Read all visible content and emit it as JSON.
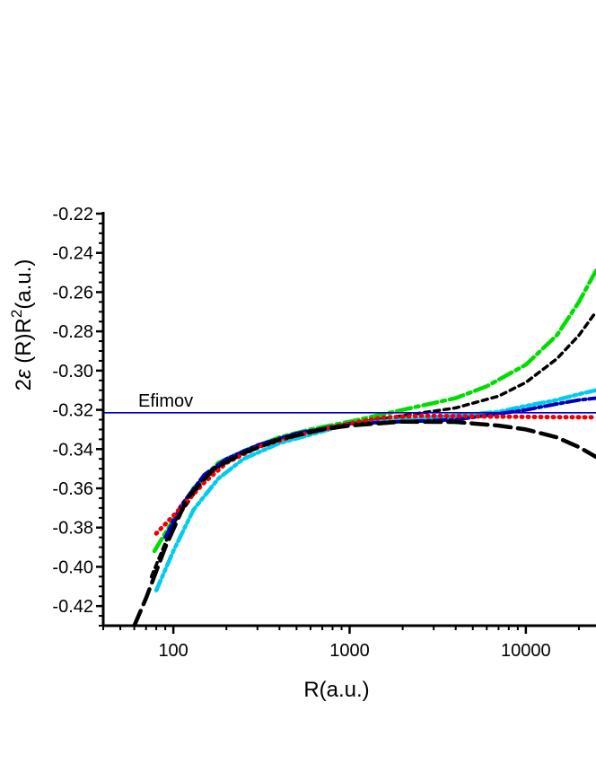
{
  "chart_data": {
    "type": "line",
    "title": "",
    "xlabel": "R(a.u.)",
    "ylabel_parts": {
      "pre": "2",
      "eps": "ε",
      "mid": " (R)R",
      "sup": "2",
      "post": "(a.u.)"
    },
    "xscale": "log",
    "xlim": [
      40,
      25000
    ],
    "ylim": [
      -0.43,
      -0.22
    ],
    "x_ticks": [
      100,
      1000,
      10000
    ],
    "x_tick_labels": [
      "100",
      "1000",
      "10000"
    ],
    "y_ticks": [
      -0.22,
      -0.24,
      -0.26,
      -0.28,
      -0.3,
      -0.32,
      -0.34,
      -0.36,
      -0.38,
      -0.4,
      -0.42
    ],
    "y_tick_labels": [
      "-0.22",
      "-0.24",
      "-0.26",
      "-0.28",
      "-0.30",
      "-0.32",
      "-0.34",
      "-0.36",
      "-0.38",
      "-0.40",
      "-0.42"
    ],
    "grid": false,
    "legend": "none",
    "reference_line": {
      "label": "Efimov",
      "y": -0.3215,
      "color": "#0000cc"
    },
    "series": [
      {
        "color": "#00dd00",
        "dash": "16,5,4,5",
        "width": 4.5,
        "points": [
          [
            78,
            -0.392
          ],
          [
            100,
            -0.376
          ],
          [
            130,
            -0.36
          ],
          [
            180,
            -0.347
          ],
          [
            250,
            -0.341
          ],
          [
            400,
            -0.334
          ],
          [
            600,
            -0.33
          ],
          [
            1000,
            -0.326
          ],
          [
            2000,
            -0.32
          ],
          [
            4000,
            -0.314
          ],
          [
            6000,
            -0.308
          ],
          [
            10000,
            -0.297
          ],
          [
            15000,
            -0.282
          ],
          [
            20000,
            -0.265
          ],
          [
            25000,
            -0.249
          ]
        ]
      },
      {
        "color": "#000000",
        "dash": "6,5",
        "width": 3.5,
        "points": [
          [
            75,
            -0.405
          ],
          [
            100,
            -0.378
          ],
          [
            150,
            -0.355
          ],
          [
            200,
            -0.346
          ],
          [
            300,
            -0.338
          ],
          [
            500,
            -0.332
          ],
          [
            1000,
            -0.327
          ],
          [
            2000,
            -0.323
          ],
          [
            4000,
            -0.319
          ],
          [
            7000,
            -0.313
          ],
          [
            10000,
            -0.306
          ],
          [
            15000,
            -0.294
          ],
          [
            20000,
            -0.282
          ],
          [
            25000,
            -0.27
          ]
        ]
      },
      {
        "color": "#00ccee",
        "dash": "12,4,3,4,3,4",
        "width": 4.5,
        "points": [
          [
            80,
            -0.412
          ],
          [
            100,
            -0.392
          ],
          [
            130,
            -0.371
          ],
          [
            180,
            -0.355
          ],
          [
            250,
            -0.345
          ],
          [
            400,
            -0.337
          ],
          [
            700,
            -0.331
          ],
          [
            1000,
            -0.327
          ],
          [
            2000,
            -0.325
          ],
          [
            4000,
            -0.323
          ],
          [
            7000,
            -0.321
          ],
          [
            10000,
            -0.318
          ],
          [
            15000,
            -0.315
          ],
          [
            20000,
            -0.312
          ],
          [
            25000,
            -0.31
          ]
        ]
      },
      {
        "color": "#0000bb",
        "dash": "14,4,3,4",
        "width": 4,
        "points": [
          [
            90,
            -0.385
          ],
          [
            110,
            -0.369
          ],
          [
            150,
            -0.353
          ],
          [
            200,
            -0.345
          ],
          [
            300,
            -0.338
          ],
          [
            500,
            -0.332
          ],
          [
            1000,
            -0.327
          ],
          [
            2000,
            -0.326
          ],
          [
            4000,
            -0.325
          ],
          [
            7000,
            -0.322
          ],
          [
            10000,
            -0.32
          ],
          [
            15000,
            -0.317
          ],
          [
            20000,
            -0.315
          ],
          [
            25000,
            -0.314
          ]
        ]
      },
      {
        "color": "#ee0000",
        "dash": "1,6",
        "width": 5,
        "points": [
          [
            80,
            -0.383
          ],
          [
            100,
            -0.374
          ],
          [
            150,
            -0.357
          ],
          [
            200,
            -0.347
          ],
          [
            300,
            -0.339
          ],
          [
            500,
            -0.333
          ],
          [
            1000,
            -0.327
          ],
          [
            1500,
            -0.324
          ],
          [
            2500,
            -0.323
          ],
          [
            4000,
            -0.3232
          ],
          [
            8000,
            -0.3235
          ],
          [
            15000,
            -0.3237
          ],
          [
            25000,
            -0.3238
          ]
        ]
      },
      {
        "color": "#000000",
        "dash": "18,8",
        "width": 4.5,
        "points": [
          [
            60,
            -0.43
          ],
          [
            70,
            -0.416
          ],
          [
            90,
            -0.39
          ],
          [
            120,
            -0.365
          ],
          [
            170,
            -0.35
          ],
          [
            250,
            -0.342
          ],
          [
            400,
            -0.335
          ],
          [
            700,
            -0.33
          ],
          [
            1000,
            -0.328
          ],
          [
            2000,
            -0.326
          ],
          [
            4000,
            -0.3262
          ],
          [
            7000,
            -0.328
          ],
          [
            10000,
            -0.33
          ],
          [
            15000,
            -0.334
          ],
          [
            20000,
            -0.339
          ],
          [
            25000,
            -0.344
          ]
        ]
      }
    ]
  }
}
